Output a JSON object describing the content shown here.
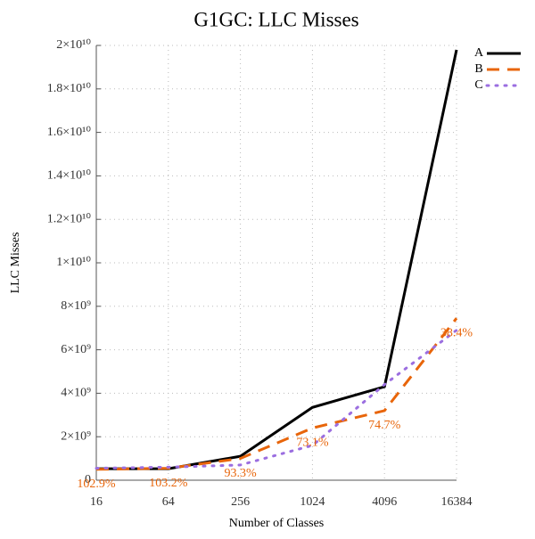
{
  "chart_data": {
    "type": "line",
    "title": "G1GC: LLC Misses",
    "x_label": "Number of Classes",
    "y_label": "LLC Misses",
    "x": [
      16,
      64,
      256,
      1024,
      4096,
      16384
    ],
    "xlim": [
      16,
      16384
    ],
    "xticks": [
      16,
      64,
      256,
      1024,
      4096,
      16384
    ],
    "x_log_scale": true,
    "ylim": [
      0,
      20000000000
    ],
    "yticks": [
      {
        "value": 0,
        "label": "0"
      },
      {
        "value": 2000000000,
        "label": "2×10⁹"
      },
      {
        "value": 4000000000,
        "label": "4×10⁹"
      },
      {
        "value": 6000000000,
        "label": "6×10⁹"
      },
      {
        "value": 8000000000,
        "label": "8×10⁹"
      },
      {
        "value": 10000000000,
        "label": "1×10¹⁰"
      },
      {
        "value": 12000000000,
        "label": "1.2×10¹⁰"
      },
      {
        "value": 14000000000,
        "label": "1.4×10¹⁰"
      },
      {
        "value": 16000000000,
        "label": "1.6×10¹⁰"
      },
      {
        "value": 18000000000,
        "label": "1.8×10¹⁰"
      },
      {
        "value": 20000000000,
        "label": "2×10¹⁰"
      }
    ],
    "grid": true,
    "legend": "top-right",
    "series": [
      {
        "name": "A",
        "color": "#000000",
        "style": "solid",
        "values": [
          530000000,
          530000000,
          1100000000,
          3350000000,
          4300000000,
          19800000000
        ]
      },
      {
        "name": "B",
        "color": "#e8650a",
        "style": "dashed",
        "values": [
          500000000,
          550000000,
          1000000000,
          2400000000,
          3200000000,
          7450000000
        ]
      },
      {
        "name": "C",
        "color": "#9b6ee0",
        "style": "dotted",
        "values": [
          550000000,
          600000000,
          700000000,
          1600000000,
          4400000000,
          6900000000
        ]
      }
    ],
    "annotations": [
      "102.9%",
      "103.2%",
      "93.3%",
      "73.1%",
      "74.7%",
      "38.4%"
    ],
    "annotation_color": "#e8650a"
  }
}
